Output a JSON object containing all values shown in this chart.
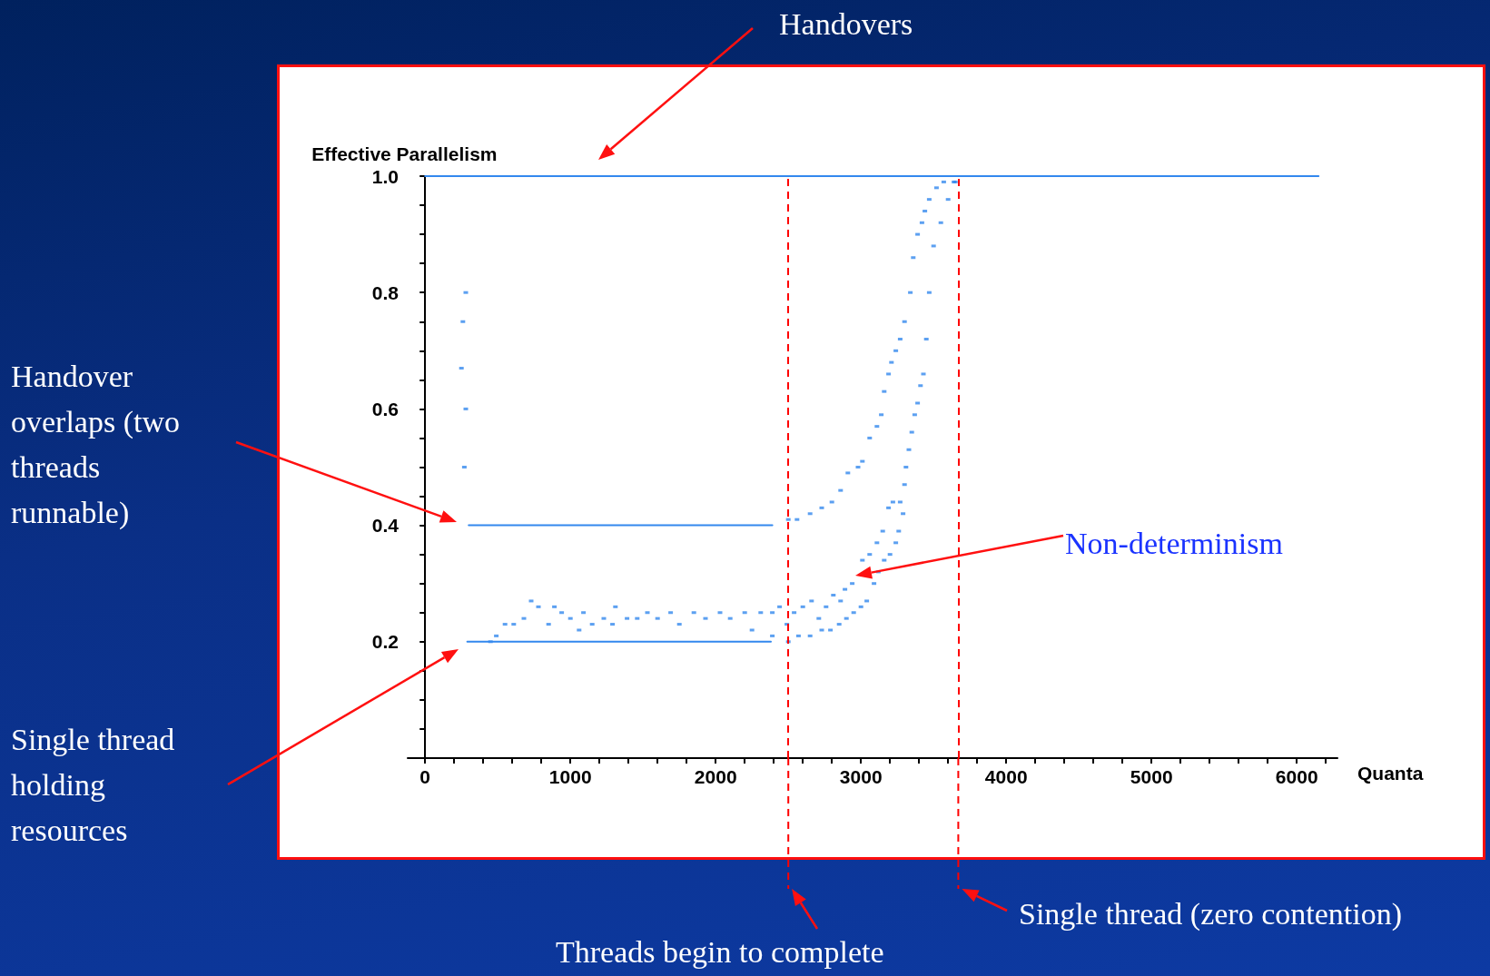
{
  "chart_data": {
    "type": "scatter",
    "xlabel": "Quanta",
    "ylabel": "Effective Parallelism",
    "xlim": [
      -120,
      6280
    ],
    "ylim": [
      0,
      1
    ],
    "xticks": [
      0,
      {
        "value": 200,
        "label": null
      },
      {
        "value": 400,
        "label": null
      },
      {
        "value": 600,
        "label": null
      },
      {
        "value": 800,
        "label": null
      },
      1000,
      {
        "value": 1200,
        "label": null
      },
      {
        "value": 1400,
        "label": null
      },
      {
        "value": 1600,
        "label": null
      },
      {
        "value": 1800,
        "label": null
      },
      2000,
      {
        "value": 2200,
        "label": null
      },
      {
        "value": 2400,
        "label": null
      },
      {
        "value": 2600,
        "label": null
      },
      {
        "value": 2800,
        "label": null
      },
      3000,
      {
        "value": 3200,
        "label": null
      },
      {
        "value": 3400,
        "label": null
      },
      {
        "value": 3600,
        "label": null
      },
      {
        "value": 3800,
        "label": null
      },
      4000,
      {
        "value": 4200,
        "label": null
      },
      {
        "value": 4400,
        "label": null
      },
      {
        "value": 4600,
        "label": null
      },
      {
        "value": 4800,
        "label": null
      },
      5000,
      {
        "value": 5200,
        "label": null
      },
      {
        "value": 5400,
        "label": null
      },
      {
        "value": 5600,
        "label": null
      },
      {
        "value": 5800,
        "label": null
      },
      6000,
      {
        "value": 6200,
        "label": null
      }
    ],
    "yticks": [
      {
        "value": 0.05,
        "label": null
      },
      {
        "value": 0.1,
        "label": null
      },
      {
        "value": 0.15,
        "label": null
      },
      0.2,
      {
        "value": 0.25,
        "label": null
      },
      {
        "value": 0.3,
        "label": null
      },
      {
        "value": 0.35,
        "label": null
      },
      0.4,
      {
        "value": 0.45,
        "label": null
      },
      {
        "value": 0.5,
        "label": null
      },
      {
        "value": 0.55,
        "label": null
      },
      0.6,
      {
        "value": 0.65,
        "label": null
      },
      {
        "value": 0.7,
        "label": null
      },
      {
        "value": 0.75,
        "label": null
      },
      0.8,
      {
        "value": 0.85,
        "label": null
      },
      {
        "value": 0.9,
        "label": null
      },
      {
        "value": 0.95,
        "label": null
      },
      {
        "value": 1,
        "label": "1.0"
      }
    ],
    "marker": "square",
    "series": [
      {
        "type": "line",
        "marker": "none",
        "color": "#3388ee",
        "x": [
          0,
          6150
        ],
        "values": [
          1,
          1
        ]
      },
      {
        "type": "line",
        "marker": "none",
        "color": "#3388ee",
        "x": [
          300,
          2390
        ],
        "values": [
          0.4,
          0.4
        ]
      },
      {
        "type": "line",
        "marker": "none",
        "color": "#3388ee",
        "x": [
          290,
          2380
        ],
        "values": [
          0.2,
          0.2
        ]
      },
      {
        "color": "#3388ee",
        "x": [
          280,
          260,
          250,
          280,
          270,
          2500,
          2560,
          2650,
          2730,
          2800,
          2860,
          2910,
          2980,
          3010,
          3060,
          3110,
          3140,
          3160,
          3190,
          3210,
          3240,
          3270,
          3300,
          3340,
          3360,
          3390,
          3420,
          3440,
          3470,
          3520,
          3570,
          3640,
          2390,
          2500,
          2570,
          2650,
          2730,
          2790,
          2850,
          2900,
          2950,
          3000,
          3040,
          3090,
          3120,
          3160,
          3200,
          3240,
          3260,
          3290,
          3300,
          3310,
          3330,
          3350,
          3370,
          3390,
          3410,
          3430,
          3450,
          3470,
          3500,
          3550,
          3600,
          3650,
          450,
          490,
          550,
          610,
          680,
          730,
          780,
          850,
          890,
          940,
          1000,
          1060,
          1090,
          1150,
          1230,
          1290,
          1310,
          1390,
          1460,
          1530,
          1600,
          1690,
          1750,
          1850,
          1930,
          2030,
          2100,
          2200,
          2250,
          2310,
          2390,
          2440,
          2490,
          2540,
          2600,
          2660,
          2710,
          2760,
          2810,
          2860,
          2890,
          2940,
          3010,
          3060,
          3110,
          3150,
          3190,
          3220,
          3270
        ],
        "values": [
          0.8,
          0.75,
          0.67,
          0.6,
          0.5,
          0.41,
          0.41,
          0.42,
          0.43,
          0.44,
          0.46,
          0.49,
          0.5,
          0.51,
          0.55,
          0.57,
          0.59,
          0.63,
          0.66,
          0.68,
          0.7,
          0.72,
          0.75,
          0.8,
          0.86,
          0.9,
          0.92,
          0.94,
          0.96,
          0.98,
          0.99,
          0.99,
          0.21,
          0.2,
          0.21,
          0.21,
          0.22,
          0.22,
          0.23,
          0.24,
          0.25,
          0.26,
          0.27,
          0.3,
          0.32,
          0.34,
          0.35,
          0.37,
          0.39,
          0.42,
          0.47,
          0.5,
          0.53,
          0.56,
          0.59,
          0.61,
          0.64,
          0.66,
          0.72,
          0.8,
          0.88,
          0.92,
          0.96,
          0.99,
          0.2,
          0.21,
          0.23,
          0.23,
          0.24,
          0.27,
          0.26,
          0.23,
          0.26,
          0.25,
          0.24,
          0.22,
          0.25,
          0.23,
          0.24,
          0.23,
          0.26,
          0.24,
          0.24,
          0.25,
          0.24,
          0.25,
          0.23,
          0.25,
          0.24,
          0.25,
          0.24,
          0.25,
          0.22,
          0.25,
          0.25,
          0.26,
          0.23,
          0.25,
          0.26,
          0.27,
          0.24,
          0.26,
          0.28,
          0.27,
          0.29,
          0.3,
          0.34,
          0.35,
          0.37,
          0.39,
          0.43,
          0.44,
          0.44
        ]
      }
    ],
    "ref_lines": [
      {
        "axis": "x",
        "value": 2500,
        "color": "#ff0000",
        "line_style": "dashed"
      },
      {
        "axis": "x",
        "value": 3670,
        "color": "#ff0000",
        "line_style": "dashed"
      }
    ],
    "annotations": [
      "Handovers",
      "Handover overlaps (two threads runnable)",
      "Single thread holding resources",
      "Non-determinism",
      "Threads begin to complete",
      "Single thread (zero contention)"
    ]
  }
}
